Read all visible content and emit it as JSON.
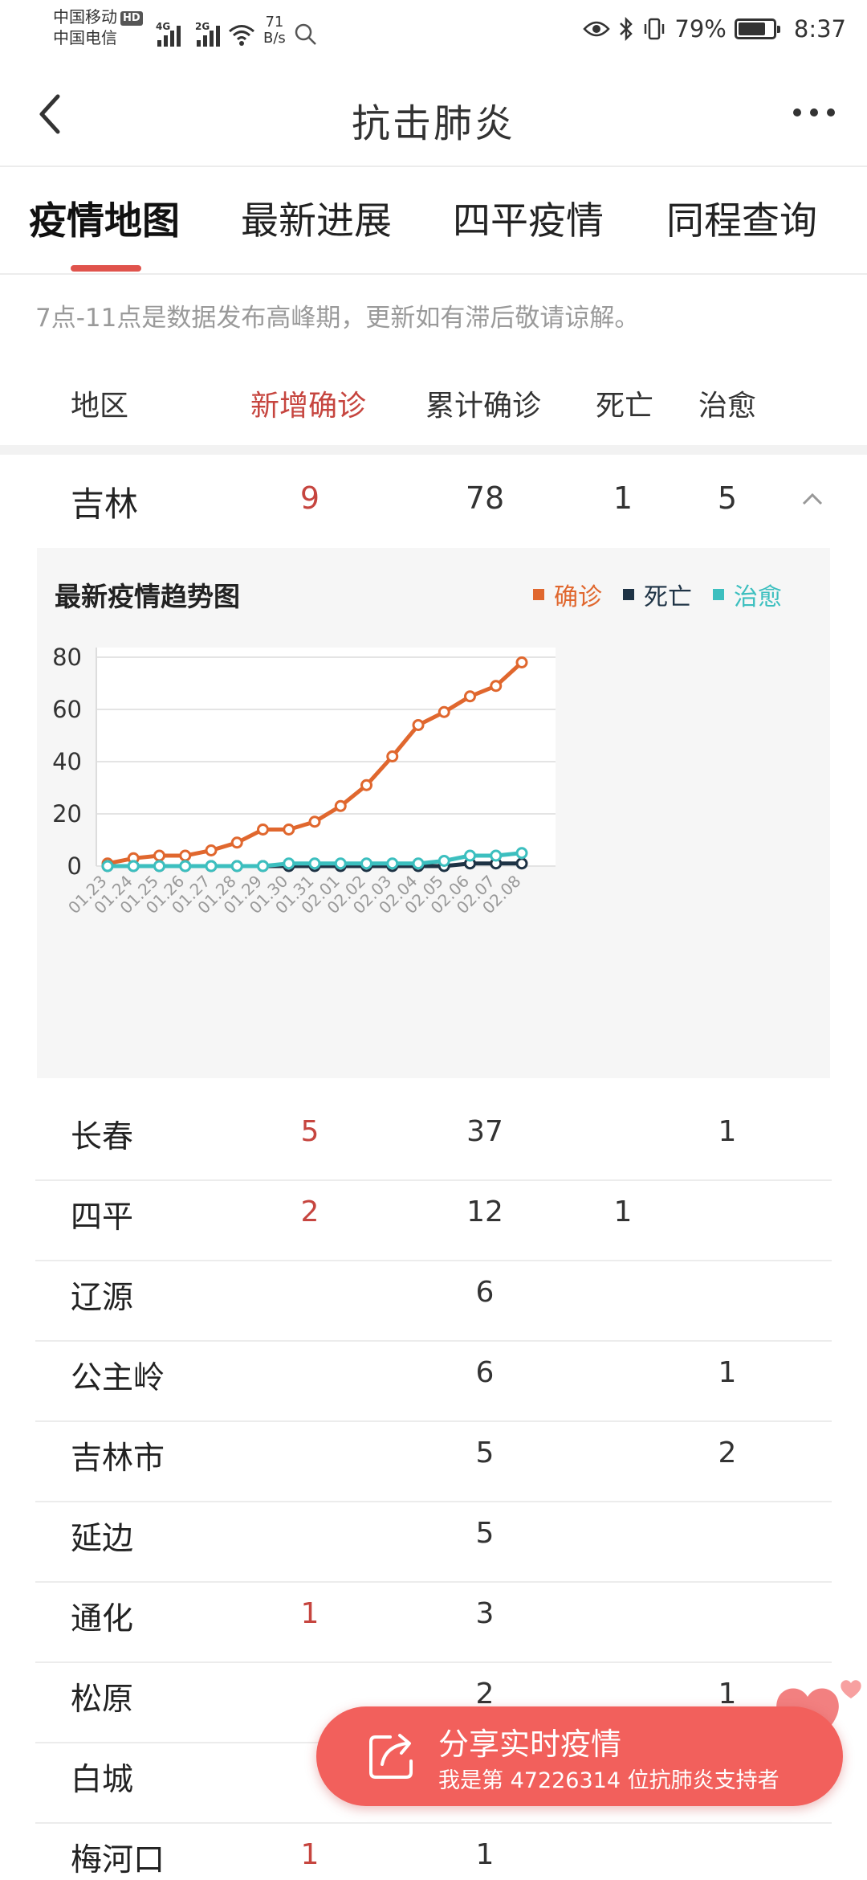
{
  "status_bar": {
    "carrier_1": "中国移动",
    "carrier_1_badge": "HD",
    "carrier_2": "中国电信",
    "signal_1_label": "4G",
    "signal_2_label": "2G",
    "net_speed_value": "71",
    "net_speed_unit": "B/s",
    "battery_percent": "79%",
    "battery_level": 0.79,
    "time": "8:37",
    "icons": [
      "eye-icon",
      "bluetooth-icon",
      "vibrate-icon",
      "battery-icon",
      "search-icon",
      "wifi-icon"
    ]
  },
  "nav": {
    "title": "抗击肺炎",
    "back_icon": "chevron-left-icon",
    "more_icon": "more-dots-icon"
  },
  "tabs": [
    {
      "label": "疫情地图",
      "active": true
    },
    {
      "label": "最新进展",
      "active": false
    },
    {
      "label": "四平疫情",
      "active": false
    },
    {
      "label": "同程查询",
      "active": false
    }
  ],
  "notice": "7点-11点是数据发布高峰期，更新如有滞后敬请谅解。",
  "table": {
    "headers": {
      "region": "地区",
      "new_confirmed": "新增确诊",
      "total_confirmed": "累计确诊",
      "deaths": "死亡",
      "cured": "治愈"
    },
    "province": {
      "region": "吉林",
      "new_confirmed": "9",
      "total_confirmed": "78",
      "deaths": "1",
      "cured": "5",
      "expanded": true
    },
    "cities": [
      {
        "region": "长春",
        "new_confirmed": "5",
        "total_confirmed": "37",
        "deaths": "",
        "cured": "1"
      },
      {
        "region": "四平",
        "new_confirmed": "2",
        "total_confirmed": "12",
        "deaths": "1",
        "cured": ""
      },
      {
        "region": "辽源",
        "new_confirmed": "",
        "total_confirmed": "6",
        "deaths": "",
        "cured": ""
      },
      {
        "region": "公主岭",
        "new_confirmed": "",
        "total_confirmed": "6",
        "deaths": "",
        "cured": "1"
      },
      {
        "region": "吉林市",
        "new_confirmed": "",
        "total_confirmed": "5",
        "deaths": "",
        "cured": "2"
      },
      {
        "region": "延边",
        "new_confirmed": "",
        "total_confirmed": "5",
        "deaths": "",
        "cured": ""
      },
      {
        "region": "通化",
        "new_confirmed": "1",
        "total_confirmed": "3",
        "deaths": "",
        "cured": ""
      },
      {
        "region": "松原",
        "new_confirmed": "",
        "total_confirmed": "2",
        "deaths": "",
        "cured": "1"
      },
      {
        "region": "白城",
        "new_confirmed": "",
        "total_confirmed": "",
        "deaths": "",
        "cured": ""
      },
      {
        "region": "梅河口",
        "new_confirmed": "1",
        "total_confirmed": "1",
        "deaths": "",
        "cured": ""
      }
    ]
  },
  "chart_data": {
    "type": "line",
    "title": "最新疫情趋势图",
    "x": [
      "01.23",
      "01.24",
      "01.25",
      "01.26",
      "01.27",
      "01.28",
      "01.29",
      "01.30",
      "01.31",
      "02.01",
      "02.02",
      "02.03",
      "02.04",
      "02.05",
      "02.06",
      "02.07",
      "02.08"
    ],
    "yticks": [
      0,
      20,
      40,
      60,
      80
    ],
    "ylim": [
      0,
      80
    ],
    "legend_position": "top-right",
    "grid": true,
    "series": [
      {
        "name": "确诊",
        "color": "#e0672e",
        "values": [
          1,
          3,
          4,
          4,
          6,
          9,
          14,
          14,
          17,
          23,
          31,
          42,
          54,
          59,
          65,
          69,
          78
        ]
      },
      {
        "name": "死亡",
        "color": "#1e3345",
        "values": [
          0,
          0,
          0,
          0,
          0,
          0,
          0,
          0,
          0,
          0,
          0,
          0,
          0,
          0,
          1,
          1,
          1
        ]
      },
      {
        "name": "治愈",
        "color": "#3cbfbf",
        "values": [
          0,
          0,
          0,
          0,
          0,
          0,
          0,
          1,
          1,
          1,
          1,
          1,
          1,
          2,
          4,
          4,
          5
        ]
      }
    ]
  },
  "share": {
    "title": "分享实时疫情",
    "subtitle": "我是第 47226314 位抗肺炎支持者",
    "icon": "share-icon",
    "decoration": "hearts-icon"
  }
}
